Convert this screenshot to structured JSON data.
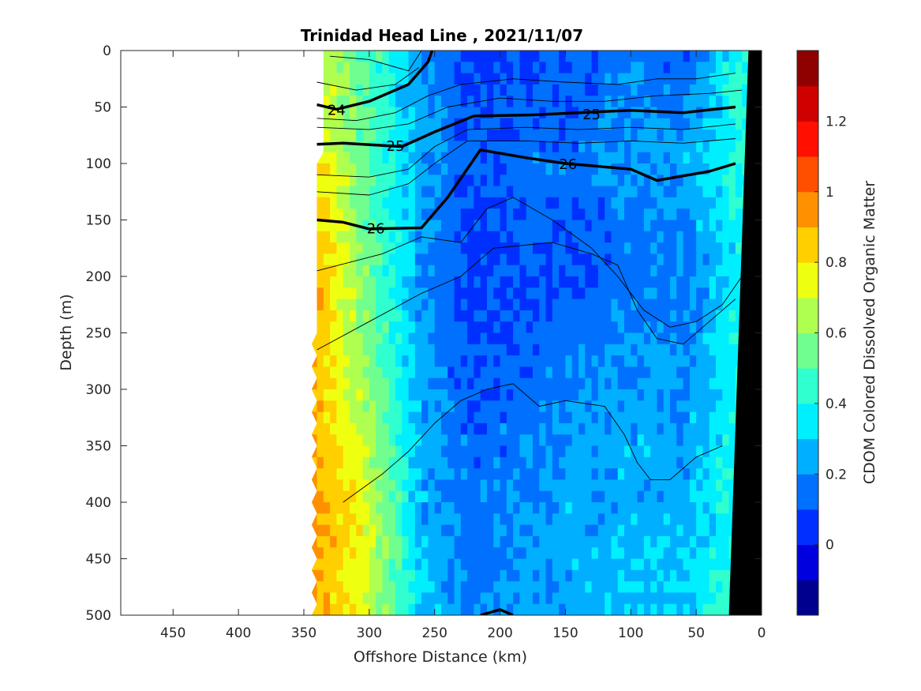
{
  "chart_data": {
    "type": "heatmap",
    "title": "Trinidad Head Line , 2021/11/07",
    "xlabel": "Offshore Distance (km)",
    "ylabel": "Depth (m)",
    "colorbar_label": "CDOM Colored Dissolved Organic Matter",
    "x_reversed": true,
    "y_reversed": true,
    "xlim": [
      0,
      490
    ],
    "ylim": [
      0,
      500
    ],
    "clim": [
      -0.2,
      1.4
    ],
    "x_ticks": [
      450,
      400,
      350,
      300,
      250,
      200,
      150,
      100,
      50,
      0
    ],
    "y_ticks": [
      0,
      50,
      100,
      150,
      200,
      250,
      300,
      350,
      400,
      450,
      500
    ],
    "colorbar_ticks": [
      0,
      0.2,
      0.4,
      0.6,
      0.8,
      1,
      1.2
    ],
    "colorbar_tick_labels": [
      "0",
      "0.2",
      "0.4",
      "0.6",
      "0.8",
      "1",
      "1.2"
    ],
    "colormap": [
      "#00008f",
      "#0000df",
      "#0030ff",
      "#0070ff",
      "#00afff",
      "#00efff",
      "#30ffcf",
      "#70ff8f",
      "#afff50",
      "#efff10",
      "#ffcf00",
      "#ff9000",
      "#ff5000",
      "#ff1000",
      "#cf0000",
      "#8f0000"
    ],
    "sampled_field": {
      "x_km": [
        340,
        300,
        260,
        220,
        180,
        140,
        100,
        60,
        20
      ],
      "depth_m": [
        0,
        100,
        200,
        300,
        400,
        500
      ],
      "cdom": [
        [
          0.7,
          0.5,
          0.2,
          0.05,
          0.1,
          0.1,
          0.2,
          0.1,
          0.4
        ],
        [
          0.8,
          0.5,
          0.25,
          0.1,
          0.15,
          0.15,
          0.2,
          0.25,
          0.4
        ],
        [
          0.9,
          0.55,
          0.2,
          0.05,
          0.1,
          0.1,
          0.15,
          0.15,
          0.35
        ],
        [
          0.85,
          0.6,
          0.25,
          0.1,
          0.15,
          0.2,
          0.25,
          0.2,
          0.4
        ],
        [
          0.95,
          0.7,
          0.25,
          0.15,
          0.2,
          0.25,
          0.25,
          0.25,
          0.4
        ],
        [
          0.9,
          0.7,
          0.3,
          0.15,
          0.25,
          0.25,
          0.3,
          0.3,
          0.45
        ]
      ]
    },
    "density_contours": [
      {
        "label": "24",
        "bold": true,
        "points": [
          [
            340,
            48
          ],
          [
            325,
            52
          ],
          [
            300,
            45
          ],
          [
            270,
            30
          ],
          [
            255,
            10
          ],
          [
            252,
            0
          ]
        ]
      },
      {
        "label": "25",
        "bold": true,
        "points": [
          [
            340,
            83
          ],
          [
            320,
            82
          ],
          [
            275,
            85
          ],
          [
            250,
            72
          ],
          [
            220,
            58
          ],
          [
            175,
            57
          ],
          [
            140,
            55
          ],
          [
            100,
            53
          ],
          [
            60,
            55
          ],
          [
            20,
            50
          ]
        ]
      },
      {
        "label": "26",
        "bold": true,
        "points": [
          [
            340,
            150
          ],
          [
            320,
            152
          ],
          [
            300,
            158
          ],
          [
            260,
            157
          ],
          [
            240,
            130
          ],
          [
            215,
            88
          ],
          [
            180,
            95
          ],
          [
            150,
            100
          ],
          [
            100,
            105
          ],
          [
            80,
            115
          ],
          [
            40,
            107
          ],
          [
            20,
            100
          ]
        ]
      },
      {
        "label": "",
        "bold": false,
        "points": [
          [
            330,
            5
          ],
          [
            300,
            8
          ],
          [
            270,
            18
          ],
          [
            260,
            0
          ]
        ]
      },
      {
        "label": "",
        "bold": false,
        "points": [
          [
            340,
            28
          ],
          [
            310,
            35
          ],
          [
            280,
            30
          ],
          [
            262,
            15
          ]
        ]
      },
      {
        "label": "",
        "bold": false,
        "points": [
          [
            340,
            60
          ],
          [
            310,
            62
          ],
          [
            280,
            55
          ],
          [
            255,
            40
          ],
          [
            230,
            30
          ],
          [
            190,
            25
          ],
          [
            150,
            28
          ],
          [
            110,
            30
          ],
          [
            80,
            25
          ],
          [
            50,
            25
          ],
          [
            20,
            20
          ]
        ]
      },
      {
        "label": "",
        "bold": false,
        "points": [
          [
            340,
            68
          ],
          [
            300,
            70
          ],
          [
            270,
            65
          ],
          [
            240,
            50
          ],
          [
            200,
            42
          ],
          [
            160,
            45
          ],
          [
            120,
            45
          ],
          [
            80,
            40
          ],
          [
            40,
            38
          ],
          [
            15,
            35
          ]
        ]
      },
      {
        "label": "",
        "bold": false,
        "points": [
          [
            340,
            110
          ],
          [
            300,
            112
          ],
          [
            270,
            105
          ],
          [
            250,
            85
          ],
          [
            225,
            70
          ],
          [
            180,
            68
          ],
          [
            140,
            70
          ],
          [
            100,
            68
          ],
          [
            60,
            70
          ],
          [
            20,
            65
          ]
        ]
      },
      {
        "label": "",
        "bold": false,
        "points": [
          [
            340,
            125
          ],
          [
            300,
            128
          ],
          [
            270,
            118
          ],
          [
            250,
            100
          ],
          [
            225,
            80
          ],
          [
            180,
            80
          ],
          [
            140,
            82
          ],
          [
            100,
            80
          ],
          [
            60,
            82
          ],
          [
            20,
            78
          ]
        ]
      },
      {
        "label": "",
        "bold": false,
        "points": [
          [
            340,
            195
          ],
          [
            290,
            180
          ],
          [
            260,
            165
          ],
          [
            230,
            170
          ],
          [
            210,
            140
          ],
          [
            190,
            130
          ],
          [
            160,
            150
          ],
          [
            130,
            175
          ],
          [
            110,
            200
          ],
          [
            90,
            230
          ],
          [
            70,
            245
          ],
          [
            50,
            240
          ],
          [
            30,
            225
          ],
          [
            15,
            200
          ]
        ]
      },
      {
        "label": "",
        "bold": false,
        "points": [
          [
            340,
            265
          ],
          [
            300,
            240
          ],
          [
            260,
            215
          ],
          [
            230,
            200
          ],
          [
            220,
            190
          ],
          [
            205,
            175
          ],
          [
            160,
            170
          ],
          [
            130,
            180
          ],
          [
            110,
            190
          ],
          [
            95,
            230
          ],
          [
            80,
            255
          ],
          [
            60,
            260
          ],
          [
            40,
            240
          ],
          [
            20,
            220
          ]
        ]
      },
      {
        "label": "",
        "bold": false,
        "points": [
          [
            320,
            400
          ],
          [
            290,
            375
          ],
          [
            270,
            355
          ],
          [
            250,
            330
          ],
          [
            230,
            310
          ],
          [
            210,
            300
          ],
          [
            190,
            295
          ],
          [
            170,
            315
          ],
          [
            150,
            310
          ],
          [
            120,
            315
          ],
          [
            105,
            340
          ],
          [
            95,
            365
          ],
          [
            85,
            380
          ],
          [
            70,
            380
          ],
          [
            50,
            360
          ],
          [
            30,
            350
          ]
        ]
      },
      {
        "label": "",
        "bold": true,
        "points": [
          [
            215,
            500
          ],
          [
            200,
            495
          ],
          [
            190,
            500
          ]
        ]
      }
    ],
    "bathymetry_points": [
      [
        0,
        0
      ],
      [
        10,
        0
      ],
      [
        25,
        500
      ],
      [
        0,
        500
      ]
    ]
  }
}
